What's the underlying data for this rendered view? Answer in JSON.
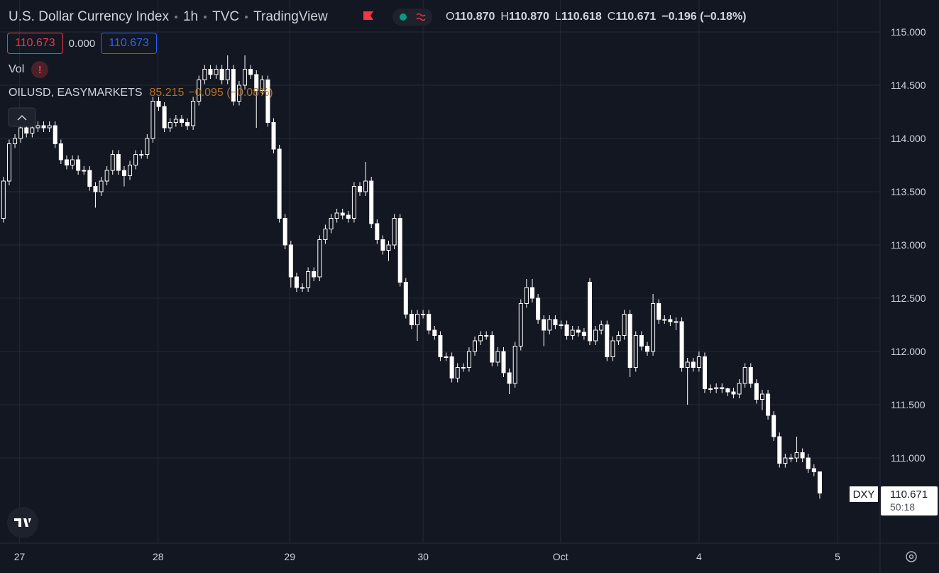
{
  "header": {
    "title": "U.S. Dollar Currency Index",
    "interval": "1h",
    "exchange": "TVC",
    "source": "TradingView",
    "ohlc": [
      {
        "label": "O",
        "value": "110.870"
      },
      {
        "label": "H",
        "value": "110.870"
      },
      {
        "label": "L",
        "value": "110.618"
      },
      {
        "label": "C",
        "value": "110.671"
      }
    ],
    "change": "−0.196 (−0.18%)"
  },
  "badges": [
    "110.673",
    "0.000",
    "110.673"
  ],
  "indicators": {
    "volume": "Vol",
    "volume_alert": "!",
    "symbol": "OILUSD, EASYMARKETS",
    "last": "85.215",
    "change": "−0.095 (−0.08%)"
  },
  "price_tag": {
    "symbol": "DXY",
    "price": "110.671",
    "countdown": "50:18"
  },
  "chart_data": {
    "type": "candlestick",
    "color": "#ffffff",
    "grid": true,
    "x": [
      0,
      1,
      2,
      3,
      4,
      5,
      6,
      7,
      8,
      9,
      10,
      11,
      12,
      13,
      14,
      15,
      16,
      17,
      18,
      19,
      20,
      21,
      22,
      23,
      24,
      25,
      26,
      27,
      28,
      29,
      30,
      31,
      32,
      33,
      34,
      35,
      36,
      37,
      38,
      39,
      40,
      41,
      42,
      43,
      44,
      45,
      46,
      47,
      48,
      49,
      50,
      51,
      52,
      53,
      54,
      55,
      56,
      57,
      58,
      59,
      60,
      61,
      62,
      63,
      64,
      65,
      66,
      67,
      68,
      69,
      70,
      71,
      72,
      73,
      74,
      75,
      76,
      77,
      78,
      79,
      80,
      81,
      82,
      83,
      84,
      85,
      86,
      87,
      88,
      89,
      90,
      91,
      92,
      93,
      94,
      95,
      96,
      97,
      98,
      99,
      100,
      101,
      102,
      103,
      104,
      105,
      106,
      107,
      108,
      109,
      110,
      111,
      112,
      113,
      114,
      115,
      116,
      117,
      118,
      119,
      120,
      121,
      122,
      123,
      124,
      125,
      126,
      127,
      128,
      129,
      130,
      131,
      132,
      133,
      134,
      135,
      136,
      137,
      138,
      139,
      140,
      141,
      142
    ],
    "open": [
      113.25,
      113.6,
      113.95,
      114.0,
      114.1,
      114.05,
      114.1,
      114.12,
      114.1,
      114.12,
      113.95,
      113.8,
      113.75,
      113.8,
      113.7,
      113.7,
      113.55,
      113.5,
      113.6,
      113.7,
      113.85,
      113.7,
      113.65,
      113.75,
      113.85,
      113.85,
      114.0,
      114.35,
      114.3,
      114.1,
      114.15,
      114.18,
      114.15,
      114.12,
      114.35,
      114.55,
      114.65,
      114.6,
      114.65,
      114.55,
      114.65,
      114.35,
      114.5,
      114.65,
      114.6,
      114.45,
      114.55,
      114.15,
      113.9,
      113.25,
      113.0,
      112.7,
      112.6,
      112.6,
      112.75,
      112.7,
      113.05,
      113.15,
      113.25,
      113.3,
      113.28,
      113.25,
      113.55,
      113.5,
      113.6,
      113.2,
      113.05,
      112.95,
      113.0,
      113.25,
      112.65,
      112.35,
      112.25,
      112.35,
      112.35,
      112.2,
      112.15,
      111.95,
      111.95,
      111.75,
      111.85,
      111.85,
      112.0,
      112.1,
      112.15,
      112.15,
      111.9,
      112.0,
      111.8,
      111.7,
      112.05,
      112.45,
      112.6,
      112.5,
      112.3,
      112.2,
      112.3,
      112.25,
      112.25,
      112.15,
      112.2,
      112.18,
      112.65,
      112.1,
      112.2,
      112.25,
      111.95,
      112.1,
      112.15,
      112.35,
      111.85,
      112.15,
      112.05,
      112.0,
      112.45,
      112.3,
      112.3,
      112.28,
      112.28,
      111.85,
      111.9,
      111.85,
      111.95,
      111.65,
      111.65,
      111.66,
      111.65,
      111.62,
      111.6,
      111.7,
      111.85,
      111.7,
      111.55,
      111.6,
      111.4,
      111.2,
      110.95,
      111.0,
      111.0,
      111.05,
      111.0,
      110.9,
      110.87
    ],
    "high": [
      113.64,
      113.99,
      114.04,
      114.14,
      114.14,
      114.14,
      114.16,
      114.16,
      114.16,
      114.16,
      113.99,
      113.84,
      113.84,
      113.84,
      113.74,
      113.74,
      113.59,
      113.64,
      113.74,
      113.89,
      113.89,
      113.74,
      113.79,
      113.89,
      113.89,
      114.04,
      114.39,
      114.39,
      114.34,
      114.19,
      114.22,
      114.22,
      114.19,
      114.39,
      114.59,
      114.69,
      114.69,
      114.69,
      114.69,
      114.78,
      114.69,
      114.54,
      114.78,
      114.69,
      114.64,
      114.59,
      114.59,
      114.19,
      113.94,
      113.29,
      113.04,
      112.74,
      112.64,
      112.79,
      112.79,
      113.09,
      113.19,
      113.29,
      113.34,
      113.34,
      113.32,
      113.59,
      113.59,
      113.78,
      113.64,
      113.24,
      113.09,
      113.04,
      113.29,
      113.29,
      112.69,
      112.39,
      112.39,
      112.39,
      112.39,
      112.24,
      112.19,
      111.99,
      111.99,
      111.89,
      111.89,
      112.04,
      112.14,
      112.19,
      112.19,
      112.19,
      112.04,
      112.04,
      111.84,
      112.09,
      112.49,
      112.68,
      112.68,
      112.54,
      112.34,
      112.34,
      112.34,
      112.29,
      112.29,
      112.24,
      112.24,
      112.22,
      112.69,
      112.24,
      112.29,
      112.29,
      112.14,
      112.19,
      112.39,
      112.39,
      112.19,
      112.19,
      112.09,
      112.54,
      112.49,
      112.34,
      112.34,
      112.32,
      112.32,
      111.94,
      111.94,
      112.0,
      111.99,
      111.69,
      111.7,
      111.7,
      111.66,
      111.66,
      111.74,
      111.89,
      111.89,
      111.74,
      111.64,
      111.64,
      111.44,
      111.24,
      111.04,
      111.04,
      111.2,
      111.09,
      111.04,
      110.94,
      110.87
    ],
    "low": [
      113.21,
      113.56,
      113.91,
      113.96,
      114.01,
      114.01,
      114.06,
      114.06,
      114.06,
      113.91,
      113.76,
      113.71,
      113.71,
      113.66,
      113.66,
      113.51,
      113.35,
      113.46,
      113.56,
      113.66,
      113.66,
      113.55,
      113.61,
      113.71,
      113.81,
      113.81,
      113.96,
      114.26,
      114.06,
      114.06,
      114.11,
      114.11,
      114.08,
      114.08,
      114.31,
      114.51,
      114.56,
      114.56,
      114.51,
      114.51,
      114.31,
      114.31,
      114.46,
      114.56,
      114.1,
      114.41,
      114.11,
      113.86,
      113.21,
      112.96,
      112.6,
      112.56,
      112.56,
      112.56,
      112.66,
      112.66,
      113.01,
      113.11,
      113.21,
      113.24,
      113.21,
      113.21,
      113.46,
      113.46,
      113.16,
      113.01,
      112.91,
      112.85,
      112.96,
      112.61,
      112.31,
      112.21,
      112.1,
      112.31,
      112.16,
      112.11,
      111.91,
      111.91,
      111.71,
      111.71,
      111.81,
      111.81,
      111.96,
      112.06,
      112.11,
      111.86,
      111.86,
      111.76,
      111.6,
      111.66,
      112.01,
      112.41,
      112.46,
      112.26,
      112.05,
      112.16,
      112.21,
      112.21,
      112.11,
      112.11,
      112.14,
      112.11,
      112.06,
      112.06,
      112.16,
      111.91,
      111.91,
      112.06,
      112.11,
      111.76,
      111.81,
      112.01,
      111.96,
      111.96,
      112.26,
      112.26,
      112.24,
      112.2,
      111.81,
      111.5,
      111.81,
      111.81,
      111.61,
      111.61,
      111.61,
      111.61,
      111.58,
      111.56,
      111.56,
      111.66,
      111.66,
      111.51,
      111.45,
      111.36,
      111.16,
      110.91,
      110.91,
      110.96,
      110.96,
      110.96,
      110.86,
      110.83,
      110.618
    ],
    "close": [
      113.6,
      113.95,
      114.0,
      114.1,
      114.05,
      114.1,
      114.12,
      114.1,
      114.12,
      113.95,
      113.8,
      113.75,
      113.8,
      113.7,
      113.7,
      113.55,
      113.5,
      113.6,
      113.7,
      113.85,
      113.7,
      113.65,
      113.75,
      113.85,
      113.85,
      114.0,
      114.35,
      114.3,
      114.1,
      114.15,
      114.18,
      114.15,
      114.12,
      114.35,
      114.55,
      114.65,
      114.6,
      114.65,
      114.55,
      114.65,
      114.35,
      114.5,
      114.65,
      114.6,
      114.45,
      114.55,
      114.15,
      113.9,
      113.25,
      113.0,
      112.7,
      112.6,
      112.6,
      112.75,
      112.7,
      113.05,
      113.15,
      113.25,
      113.3,
      113.28,
      113.25,
      113.55,
      113.5,
      113.6,
      113.2,
      113.05,
      112.95,
      113.0,
      113.25,
      112.65,
      112.35,
      112.25,
      112.35,
      112.35,
      112.2,
      112.15,
      111.95,
      111.95,
      111.75,
      111.85,
      111.85,
      112.0,
      112.1,
      112.15,
      112.15,
      111.9,
      112.0,
      111.8,
      111.7,
      112.05,
      112.45,
      112.6,
      112.5,
      112.3,
      112.2,
      112.3,
      112.25,
      112.25,
      112.15,
      112.2,
      112.18,
      112.15,
      112.1,
      112.2,
      112.25,
      111.95,
      112.1,
      112.15,
      112.35,
      111.85,
      112.15,
      112.05,
      112.0,
      112.45,
      112.3,
      112.3,
      112.28,
      112.28,
      111.85,
      111.9,
      111.85,
      111.95,
      111.65,
      111.65,
      111.66,
      111.65,
      111.62,
      111.6,
      111.7,
      111.85,
      111.7,
      111.55,
      111.6,
      111.4,
      111.2,
      110.95,
      111.0,
      111.0,
      111.05,
      111.0,
      110.9,
      110.87,
      110.671
    ],
    "xlim": [
      -0.6,
      152.5
    ],
    "xticks": [
      {
        "value": 2.8,
        "label": "27"
      },
      {
        "value": 26.9,
        "label": "28"
      },
      {
        "value": 49.8,
        "label": "29"
      },
      {
        "value": 73,
        "label": "30"
      },
      {
        "value": 96.9,
        "label": "Oct"
      },
      {
        "value": 121,
        "label": "4"
      },
      {
        "value": 145.1,
        "label": "5"
      }
    ],
    "ylim": [
      110.2,
      115.3
    ],
    "yticks": [
      {
        "value": 115,
        "label": "115.000"
      },
      {
        "value": 114.5,
        "label": "114.500"
      },
      {
        "value": 114,
        "label": "114.000"
      },
      {
        "value": 113.5,
        "label": "113.500"
      },
      {
        "value": 113,
        "label": "113.000"
      },
      {
        "value": 112.5,
        "label": "112.500"
      },
      {
        "value": 112,
        "label": "112.000"
      },
      {
        "value": 111.5,
        "label": "111.500"
      },
      {
        "value": 111,
        "label": "111.000"
      }
    ]
  }
}
